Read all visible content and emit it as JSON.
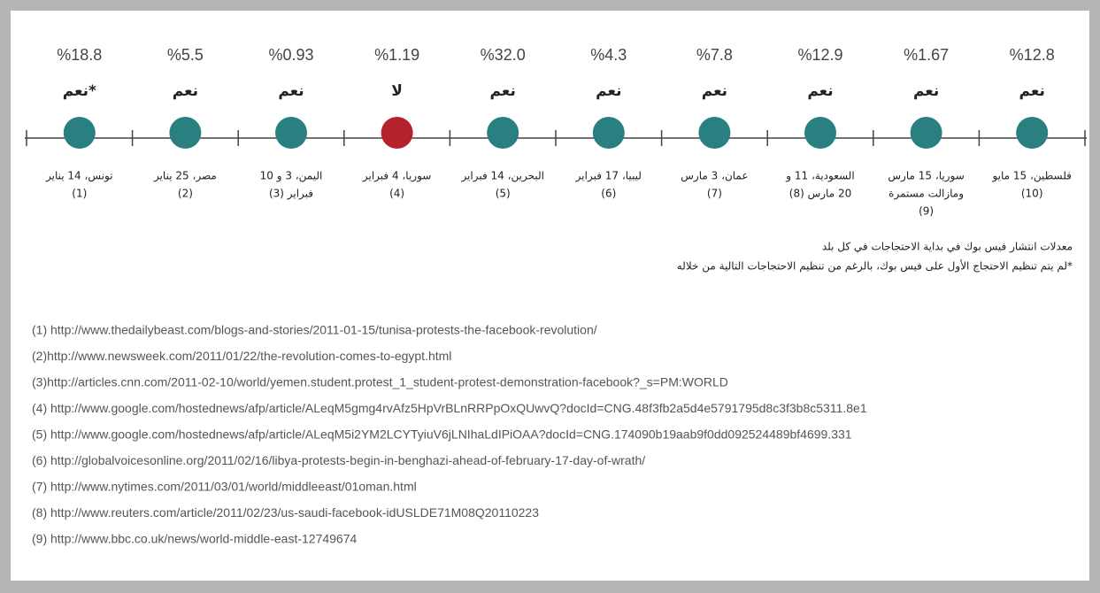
{
  "timeline": {
    "items": [
      {
        "percent": "%18.8",
        "answer": "*نعم",
        "color": "#2a7f80",
        "label": [
          "تونس، 14 يناير",
          "(1)"
        ]
      },
      {
        "percent": "%5.5",
        "answer": "نعم",
        "color": "#2a7f80",
        "label": [
          "مصر، 25 يناير",
          "(2)"
        ]
      },
      {
        "percent": "%0.93",
        "answer": "نعم",
        "color": "#2a7f80",
        "label": [
          "اليمن، 3 و 10",
          "فبراير (3)"
        ]
      },
      {
        "percent": "%1.19",
        "answer": "لا",
        "color": "#b4232b",
        "label": [
          "سوريا، 4 فبراير",
          "(4)"
        ]
      },
      {
        "percent": "%32.0",
        "answer": "نعم",
        "color": "#2a7f80",
        "label": [
          "البحرين، 14 فبراير",
          "(5)"
        ]
      },
      {
        "percent": "%4.3",
        "answer": "نعم",
        "color": "#2a7f80",
        "label": [
          "ليبيا، 17 فبراير",
          "(6)"
        ]
      },
      {
        "percent": "%7.8",
        "answer": "نعم",
        "color": "#2a7f80",
        "label": [
          "عمان، 3 مارس",
          "(7)"
        ]
      },
      {
        "percent": "%12.9",
        "answer": "نعم",
        "color": "#2a7f80",
        "label": [
          "السعودية، 11 و",
          "20 مارس (8)"
        ]
      },
      {
        "percent": "%1.67",
        "answer": "نعم",
        "color": "#2a7f80",
        "label": [
          "سوريا، 15 مارس",
          "ومازالت مستمرة",
          "(9)"
        ]
      },
      {
        "percent": "%12.8",
        "answer": "نعم",
        "color": "#2a7f80",
        "label": [
          "فلسطين، 15 مايو",
          "(10)"
        ]
      }
    ]
  },
  "notes": [
    "معدلات انتشار فيس بوك في بداية الاحتجاجات في كل بلد",
    "*لم يتم تنظيم الاحتجاج الأول على فيس بوك، بالرغم من تنظيم الاحتجاجات التالية من خلاله"
  ],
  "references": [
    "(1) http://www.thedailybeast.com/blogs-and-stories/2011-01-15/tunisa-protests-the-facebook-revolution/",
    "(2)http://www.newsweek.com/2011/01/22/the-revolution-comes-to-egypt.html",
    "(3)http://articles.cnn.com/2011-02-10/world/yemen.student.protest_1_student-protest-demonstration-facebook?_s=PM:WORLD",
    "(4) http://www.google.com/hostednews/afp/article/ALeqM5gmg4rvAfz5HpVrBLnRRPpOxQUwvQ?docId=CNG.48f3fb2a5d4e5791795d8c3f3b8c5311.8e1",
    "(5) http://www.google.com/hostednews/afp/article/ALeqM5i2YM2LCYTyiuV6jLNIhaLdIPiOAA?docId=CNG.174090b19aab9f0dd092524489bf4699.331",
    "(6) http://globalvoicesonline.org/2011/02/16/libya-protests-begin-in-benghazi-ahead-of-february-17-day-of-wrath/",
    "(7) http://www.nytimes.com/2011/03/01/world/middleeast/01oman.html",
    "(8) http://www.reuters.com/article/2011/02/23/us-saudi-facebook-idUSLDE71M08Q20110223",
    "(9) http://www.bbc.co.uk/news/world-middle-east-12749674"
  ]
}
